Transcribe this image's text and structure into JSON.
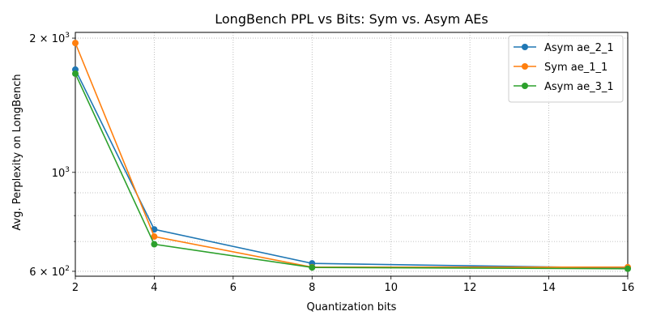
{
  "chart_data": {
    "type": "line",
    "title": "LongBench PPL vs Bits: Sym vs. Asym AEs",
    "xlabel": "Quantization bits",
    "ylabel": "Avg. Perplexity on LongBench",
    "xlim": [
      2,
      16
    ],
    "ylim": [
      585,
      2060
    ],
    "y_scale": "log",
    "x_ticks": [
      2,
      4,
      6,
      8,
      10,
      12,
      14,
      16
    ],
    "y_major_ticks": [
      {
        "value": 600,
        "base": "6 × 10",
        "exp": "2"
      },
      {
        "value": 1000,
        "base": "10",
        "exp": "3"
      },
      {
        "value": 2000,
        "base": "2 × 10",
        "exp": "3"
      }
    ],
    "y_minor_ticks": [
      700,
      800,
      900
    ],
    "grid": true,
    "legend_position": "top-right",
    "series": [
      {
        "name": "Asym ae_2_1",
        "color": "#1f77b4",
        "x": [
          2,
          4,
          8,
          16
        ],
        "y": [
          1700,
          745,
          625,
          610
        ]
      },
      {
        "name": "Sym ae_1_1",
        "color": "#ff7f0e",
        "x": [
          2,
          4,
          8,
          16
        ],
        "y": [
          1950,
          718,
          613,
          613
        ]
      },
      {
        "name": "Asym ae_3_1",
        "color": "#2ca02c",
        "x": [
          2,
          4,
          8,
          16
        ],
        "y": [
          1665,
          690,
          612,
          608
        ]
      }
    ]
  }
}
